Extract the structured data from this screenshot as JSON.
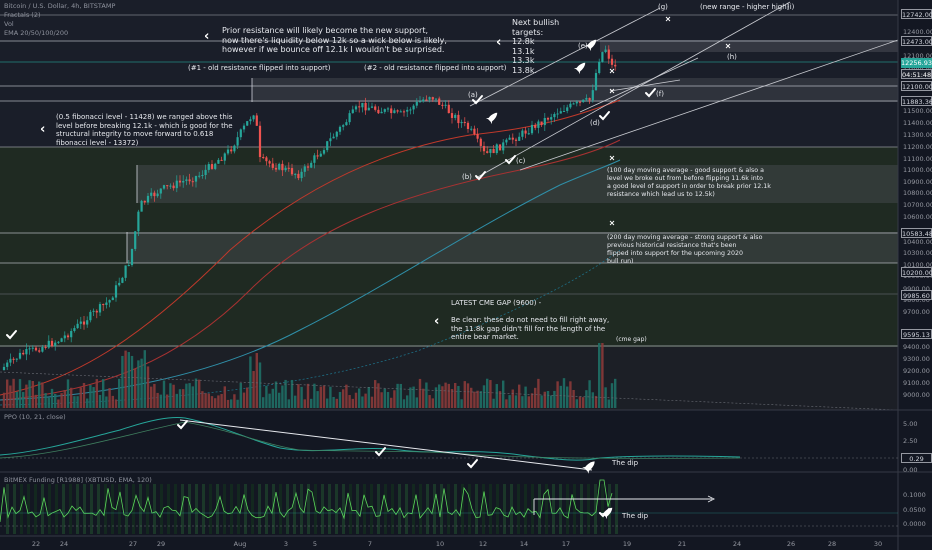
{
  "header": {
    "symbol_line": "Bitcoin / U.S. Dollar, 4h, BITSTAMP",
    "indicators": [
      "Fractals (2)",
      "Vol",
      "EMA 20/50/100/200"
    ]
  },
  "price_axis": {
    "ticks": [
      "12400.00",
      "12300.00",
      "12100.00",
      "11900.00",
      "11800.00",
      "11700.00",
      "11600.00",
      "11500.00",
      "11400.00",
      "11300.00",
      "11200.00",
      "11100.00",
      "11000.00",
      "10900.00",
      "10800.00",
      "10700.00",
      "10600.00",
      "10400.00",
      "10300.00",
      "10100.00",
      "10000.00",
      "9900.00",
      "9800.00",
      "9700.00",
      "9500.00",
      "9400.00",
      "9300.00",
      "9200.00",
      "9100.00",
      "9000.00"
    ],
    "labels": {
      "top": "12742.00",
      "r12473": "12473.00",
      "current_price": "12256.93",
      "countdown": "04:51:48",
      "r12100": "12100.00",
      "r11883": "11883.36",
      "r10583": "10583.48",
      "r10200": "10200.00",
      "r9985": "9985.60",
      "r9595": "9595.13"
    }
  },
  "ppo": {
    "title": "PPO (10, 21, close)",
    "ticks": [
      "5.00",
      "2.50",
      "0.00"
    ],
    "value": "0.29",
    "dip_label": "The dip"
  },
  "funding": {
    "title": "BitMEX Funding [R1988] (XBTUSD, EMA, 120)",
    "ticks": [
      "0.1000",
      "0.0500",
      "0.0000"
    ],
    "dip_label": "The dip"
  },
  "time_axis": [
    "22",
    "24",
    "27",
    "29",
    "Aug",
    "3",
    "5",
    "7",
    "10",
    "12",
    "14",
    "17",
    "19",
    "21",
    "24",
    "26",
    "28",
    "30"
  ],
  "annotations": {
    "top_note": "Prior resistance will likely become the new support,\nnow there's liquidity below 12k so a wick below is likely,\nhowever if we bounce off 12.1k I wouldn't be surprised.",
    "targets": "Next bullish targets:\n12.8k\n13.1k\n13.3k\n13.8k.",
    "range": "(new range - higher high)",
    "old_res_1": "(#1 - old resistance flipped into support)",
    "old_res_2": "(#2 - old resistance flipped into support)",
    "fib_note": "(0.5 fibonacci level - 11428) we ranged above this\nlevel before breaking 12.1k - which is good for the\nstructural integrity to move forward to 0.618\nfibonacci level - 13372)",
    "ma100_note": "(100 day moving average - good support & also a\nlevel we broke out from before flipping 11.6k into\na good level of support in order to break prior 12.1k\nresistance which lead us to 12.5k)",
    "ma200_note": "(200 day moving average - strong support & also\nprevious historical resistance that's been\nflipped into support for the upcoming 2020\nbull run)",
    "cme_note": "LATEST CME GAP (9600) -\n\nBe clear: these do not need to fill right away,\nthe 11.8k gap didn't fill for the length of the\nentire bear market.",
    "cme_gap": "(cme gap)",
    "point_labels": [
      "(a)",
      "(b)",
      "(c)",
      "(d)",
      "(e)",
      "(f)",
      "(g)",
      "(h)",
      "(i)"
    ]
  },
  "colors": {
    "background": "#131722",
    "up": "#26a69a",
    "down": "#ef5350",
    "ema_red": "#c0392b",
    "ema_teal": "#2f8fa8",
    "annotation": "#ffffff",
    "zone": "#3a3d47"
  },
  "icons": {
    "check": "check-icon",
    "rocket": "rocket-icon",
    "chevron": "chevron-left-icon"
  }
}
